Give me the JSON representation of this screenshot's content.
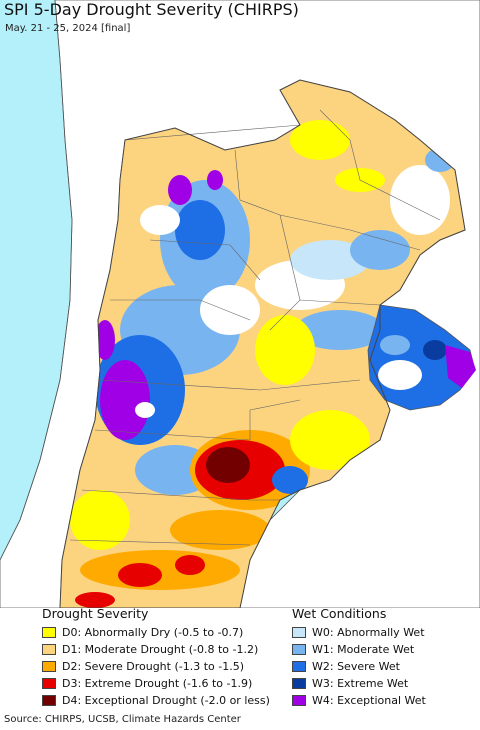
{
  "header": {
    "title": "SPI 5-Day Drought Severity (CHIRPS)",
    "subtitle": "May. 21 - 25, 2024 [final]"
  },
  "legend": {
    "drought_title": "Drought Severity",
    "drought_items": [
      {
        "label": "D0: Abnormally Dry (-0.5 to -0.7)",
        "color": "#ffff00"
      },
      {
        "label": "D1: Moderate Drought (-0.8 to -1.2)",
        "color": "#fcd37f"
      },
      {
        "label": "D2: Severe Drought (-1.3 to -1.5)",
        "color": "#ffaa00"
      },
      {
        "label": "D3: Extreme Drought (-1.6 to -1.9)",
        "color": "#e60000"
      },
      {
        "label": "D4: Exceptional Drought (-2.0 or less)",
        "color": "#730000"
      }
    ],
    "wet_title": "Wet Conditions",
    "wet_items": [
      {
        "label": "W0: Abnormally Wet",
        "color": "#c8e6fa"
      },
      {
        "label": "W1: Moderate Wet",
        "color": "#78b4f0"
      },
      {
        "label": "W2: Severe Wet",
        "color": "#1e6ee6"
      },
      {
        "label": "W3: Extreme Wet",
        "color": "#0a3ca0"
      },
      {
        "label": "W4: Exceptional Wet",
        "color": "#a000e6"
      }
    ]
  },
  "footer": {
    "source": "Source: CHIRPS, UCSB, Climate Hazards Center"
  },
  "colors": {
    "ocean": "#b4f0fa",
    "land_outside": "#ffffff",
    "border": "#555555"
  }
}
